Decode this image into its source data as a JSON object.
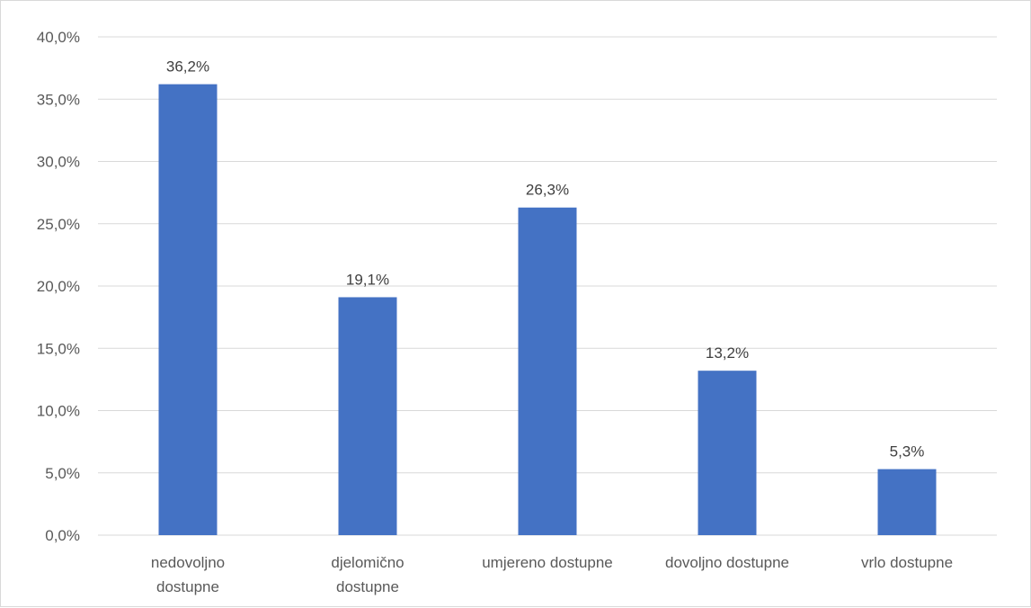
{
  "chart_data": {
    "type": "bar",
    "title": "",
    "xlabel": "",
    "ylabel": "",
    "categories": [
      [
        "nedovoljno",
        "dostupne"
      ],
      [
        "djelomično",
        "dostupne"
      ],
      [
        "umjereno dostupne"
      ],
      [
        "dovoljno dostupne"
      ],
      [
        "vrlo dostupne"
      ]
    ],
    "values": [
      36.2,
      19.1,
      26.3,
      13.2,
      5.3
    ],
    "data_labels": [
      "36,2%",
      "19,1%",
      "26,3%",
      "13,2%",
      "5,3%"
    ],
    "ylim": [
      0,
      40
    ],
    "yticks": [
      0,
      5,
      10,
      15,
      20,
      25,
      30,
      35,
      40
    ],
    "ytick_labels": [
      "0,0%",
      "5,0%",
      "10,0%",
      "15,0%",
      "20,0%",
      "25,0%",
      "30,0%",
      "35,0%",
      "40,0%"
    ],
    "grid": true,
    "legend": "none",
    "bar_color": "#4472C4",
    "grid_color": "#d9d9d9"
  }
}
